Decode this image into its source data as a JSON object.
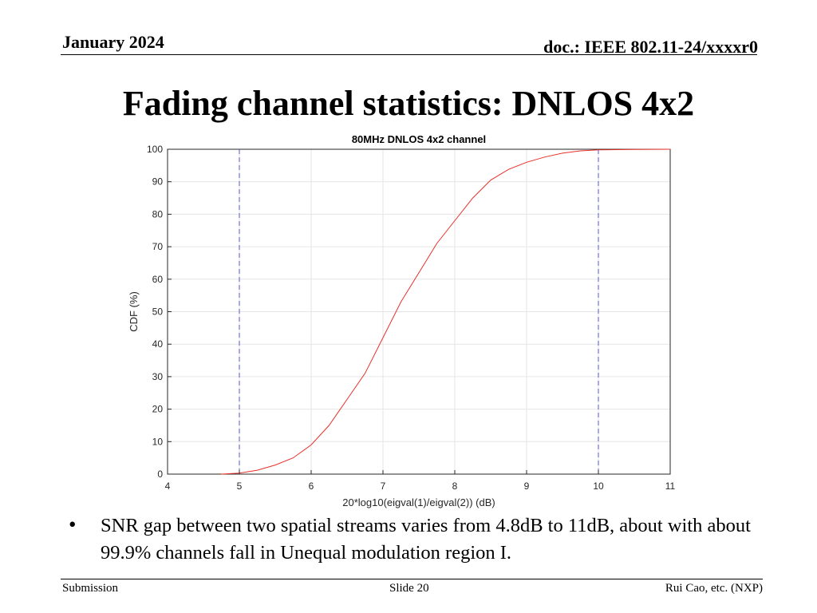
{
  "header": {
    "date": "January 2024",
    "doc": "doc.: IEEE 802.11-24/xxxxr0"
  },
  "slide": {
    "title": "Fading channel statistics: DNLOS 4x2"
  },
  "bullets": [
    {
      "marker": "•",
      "text": "SNR gap between two spatial streams varies from 4.8dB to 11dB, about with about 99.9% channels fall in Unequal modulation region I."
    }
  ],
  "footer": {
    "left": "Submission",
    "center": "Slide 20",
    "right": "Rui Cao, etc. (NXP)"
  },
  "chart_data": {
    "type": "line",
    "title": "80MHz DNLOS 4x2 channel",
    "xlabel": "20*log10(eigval(1)/eigval(2)) (dB)",
    "ylabel": "CDF (%)",
    "xlim": [
      4,
      11
    ],
    "ylim": [
      0,
      100
    ],
    "xticks": [
      4,
      5,
      6,
      7,
      8,
      9,
      10,
      11
    ],
    "yticks": [
      0,
      10,
      20,
      30,
      40,
      50,
      60,
      70,
      80,
      90,
      100
    ],
    "grid": true,
    "series": [
      {
        "color": "#e8302a",
        "x": [
          4.75,
          5.0,
          5.25,
          5.5,
          5.75,
          6.0,
          6.25,
          6.5,
          6.75,
          7.0,
          7.25,
          7.5,
          7.75,
          8.0,
          8.25,
          8.5,
          8.75,
          9.0,
          9.25,
          9.5,
          9.75,
          10.0,
          10.5,
          11.0
        ],
        "y": [
          0.0,
          0.3,
          1.2,
          2.8,
          5.0,
          9.0,
          15.0,
          23.0,
          31.0,
          42.0,
          53.0,
          62.0,
          71.0,
          78.0,
          85.0,
          90.5,
          93.8,
          96.0,
          97.6,
          98.8,
          99.5,
          99.8,
          99.95,
          100.0
        ]
      }
    ],
    "vertical_lines": [
      {
        "x": 5,
        "color": "#5555cc",
        "style": "dashed"
      },
      {
        "x": 10,
        "color": "#5555cc",
        "style": "dashed"
      }
    ]
  }
}
